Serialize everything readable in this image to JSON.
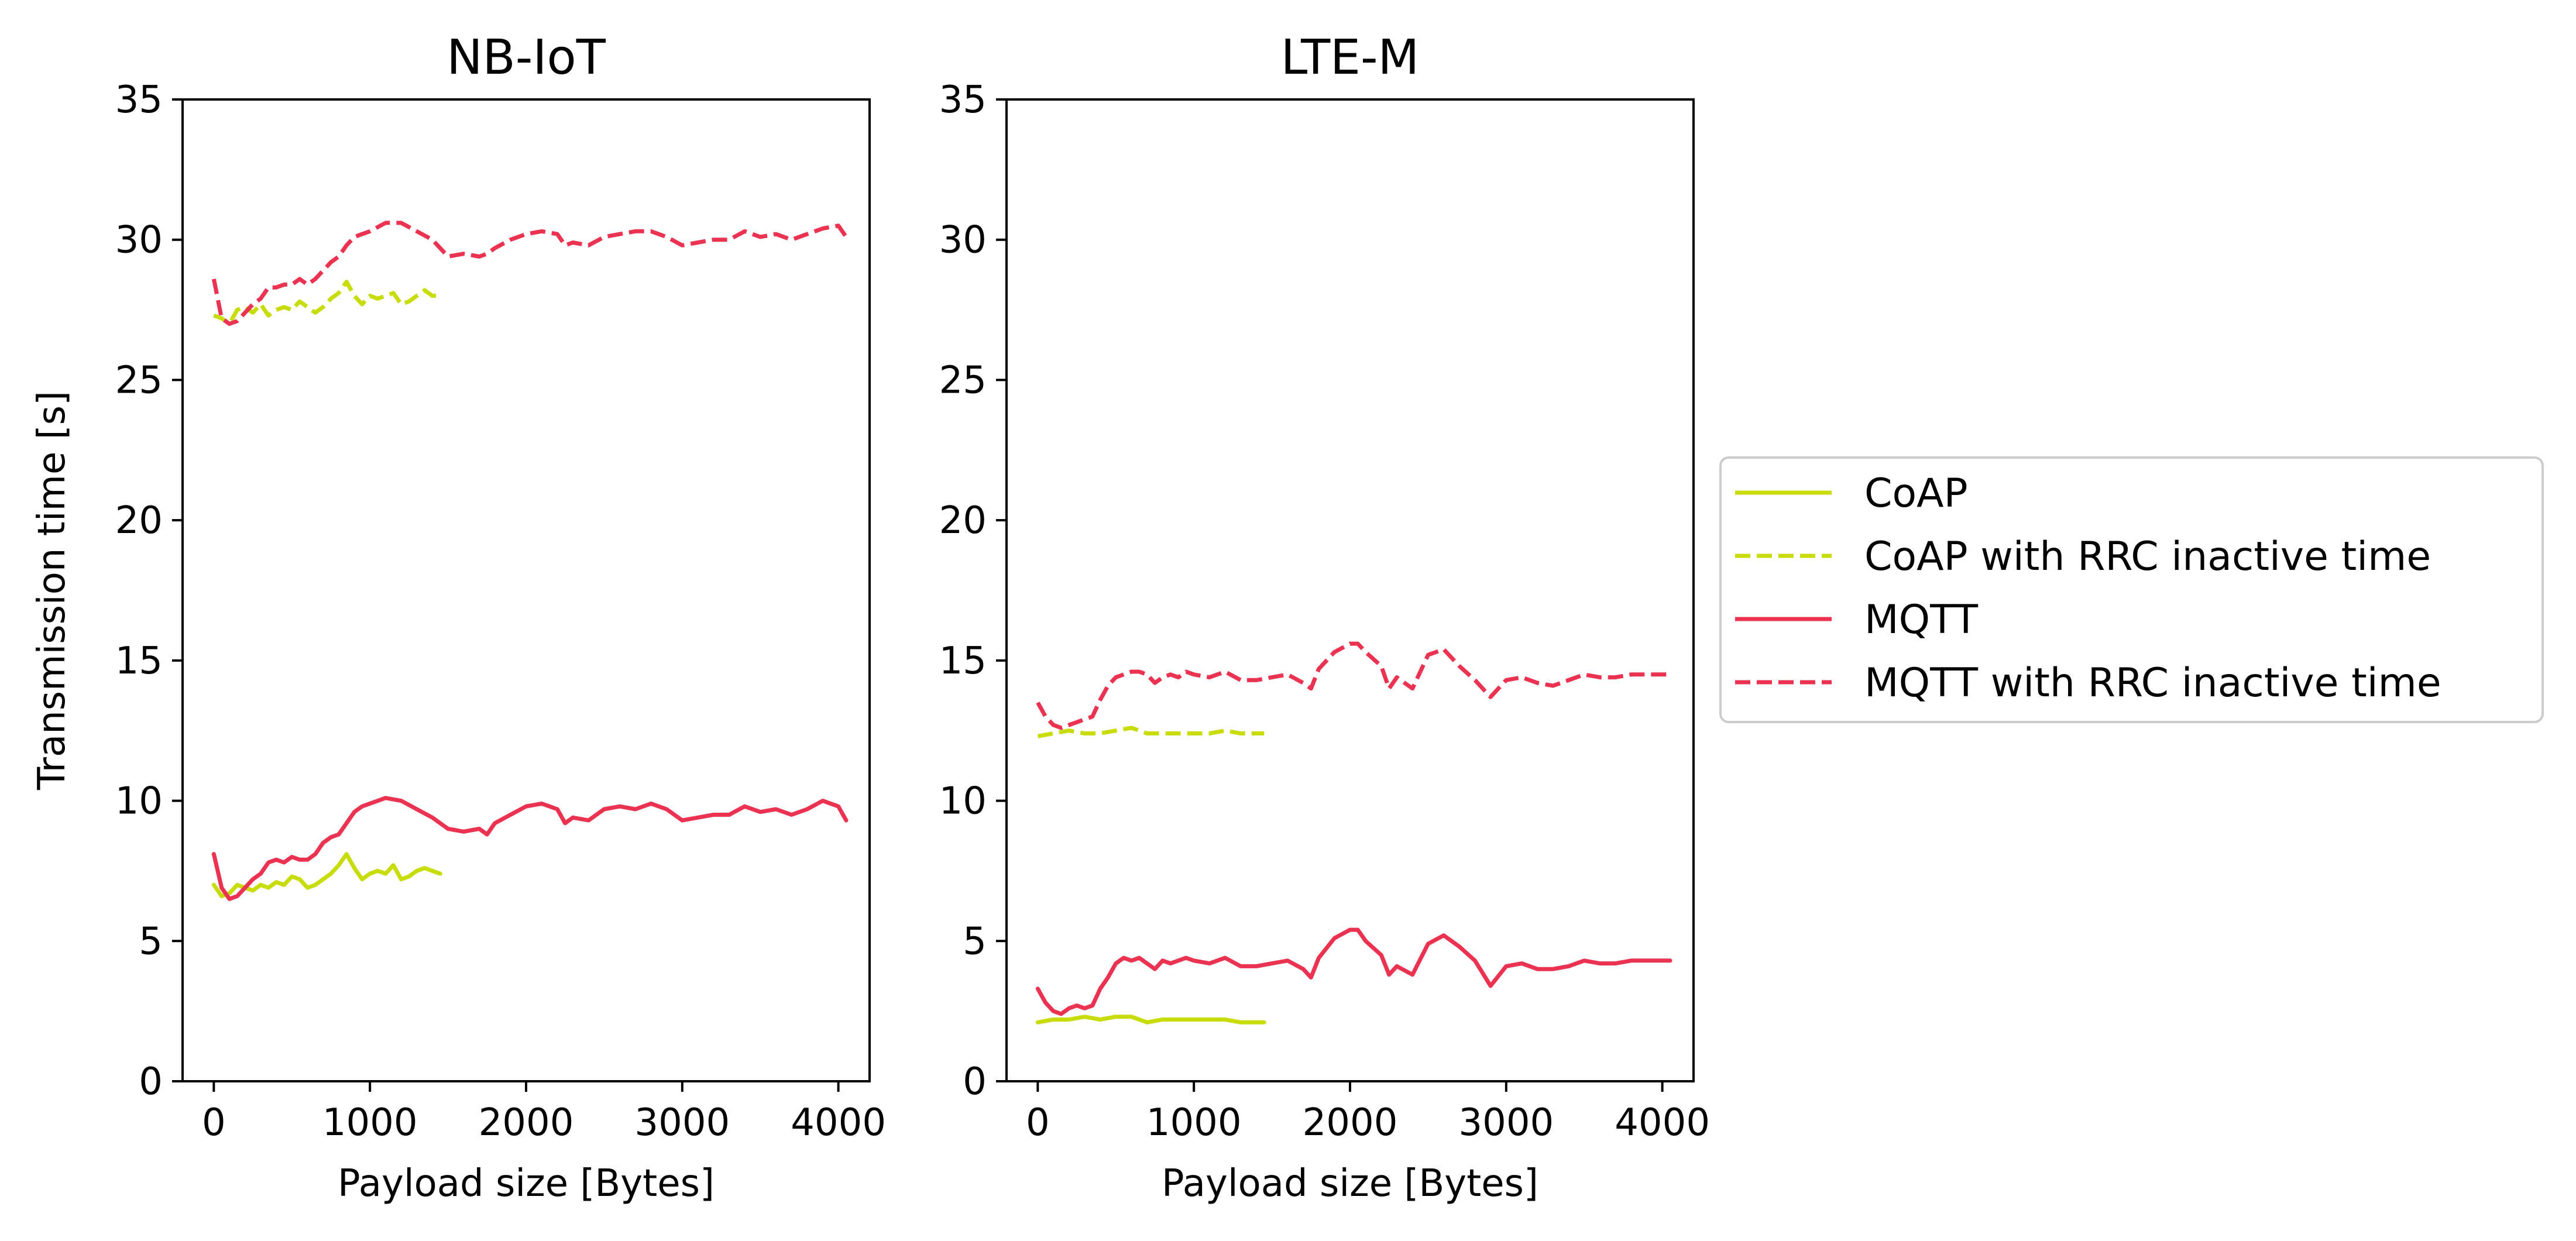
{
  "chart_data": {
    "type": "line",
    "ylabel": "Transmission time [s]",
    "legend": {
      "placement": "right",
      "entries": [
        {
          "label": "CoAP",
          "color": "#c8dc0a",
          "style": "solid"
        },
        {
          "label": "CoAP with RRC inactive time",
          "color": "#c8dc0a",
          "style": "dashed"
        },
        {
          "label": "MQTT",
          "color": "#eb3250",
          "style": "solid"
        },
        {
          "label": "MQTT with RRC inactive time",
          "color": "#eb3250",
          "style": "dashed"
        }
      ]
    },
    "colors": {
      "coap": "#c8dc0a",
      "mqtt": "#eb3250"
    },
    "panels": [
      {
        "title": "NB-IoT",
        "xlabel": "Payload size [Bytes]",
        "xlim": [
          -200,
          4200
        ],
        "ylim": [
          0,
          35
        ],
        "xticks": [
          "0",
          "1000",
          "2000",
          "3000",
          "4000"
        ],
        "xtick_values": [
          0,
          1000,
          2000,
          3000,
          4000
        ],
        "yticks": [
          "0",
          "5",
          "10",
          "15",
          "20",
          "25",
          "30",
          "35"
        ],
        "ytick_values": [
          0,
          5,
          10,
          15,
          20,
          25,
          30,
          35
        ],
        "series": [
          {
            "name": "CoAP",
            "color": "#c8dc0a",
            "style": "solid",
            "x": [
              0,
              50,
              100,
              150,
              200,
              250,
              300,
              350,
              400,
              450,
              500,
              550,
              600,
              650,
              700,
              750,
              800,
              850,
              900,
              950,
              1000,
              1050,
              1100,
              1150,
              1200,
              1250,
              1300,
              1350,
              1400,
              1450
            ],
            "y": [
              7.0,
              6.6,
              6.7,
              7.0,
              6.9,
              6.8,
              7.0,
              6.9,
              7.1,
              7.0,
              7.3,
              7.2,
              6.9,
              7.0,
              7.2,
              7.4,
              7.7,
              8.1,
              7.6,
              7.2,
              7.4,
              7.5,
              7.4,
              7.7,
              7.2,
              7.3,
              7.5,
              7.6,
              7.5,
              7.4
            ]
          },
          {
            "name": "CoAP with RRC inactive time",
            "color": "#c8dc0a",
            "style": "dashed",
            "x": [
              0,
              50,
              100,
              150,
              200,
              250,
              300,
              350,
              400,
              450,
              500,
              550,
              600,
              650,
              700,
              750,
              800,
              850,
              900,
              950,
              1000,
              1050,
              1100,
              1150,
              1200,
              1250,
              1300,
              1350,
              1400,
              1450
            ],
            "y": [
              27.3,
              27.2,
              27.0,
              27.5,
              27.6,
              27.4,
              27.7,
              27.3,
              27.5,
              27.6,
              27.5,
              27.8,
              27.6,
              27.4,
              27.6,
              27.9,
              28.1,
              28.5,
              28.0,
              27.7,
              28.0,
              27.9,
              28.0,
              28.1,
              27.7,
              27.8,
              28.0,
              28.2,
              28.0,
              28.0
            ]
          },
          {
            "name": "MQTT",
            "color": "#eb3250",
            "style": "solid",
            "x": [
              0,
              50,
              100,
              150,
              200,
              250,
              300,
              350,
              400,
              450,
              500,
              550,
              600,
              650,
              700,
              750,
              800,
              850,
              900,
              950,
              1000,
              1100,
              1200,
              1300,
              1400,
              1500,
              1600,
              1700,
              1750,
              1800,
              1900,
              2000,
              2100,
              2200,
              2250,
              2300,
              2400,
              2500,
              2600,
              2700,
              2800,
              2900,
              3000,
              3100,
              3200,
              3300,
              3400,
              3500,
              3600,
              3700,
              3800,
              3900,
              4000,
              4050
            ],
            "y": [
              8.1,
              6.9,
              6.5,
              6.6,
              6.9,
              7.2,
              7.4,
              7.8,
              7.9,
              7.8,
              8.0,
              7.9,
              7.9,
              8.1,
              8.5,
              8.7,
              8.8,
              9.2,
              9.6,
              9.8,
              9.9,
              10.1,
              10.0,
              9.7,
              9.4,
              9.0,
              8.9,
              9.0,
              8.8,
              9.2,
              9.5,
              9.8,
              9.9,
              9.7,
              9.2,
              9.4,
              9.3,
              9.7,
              9.8,
              9.7,
              9.9,
              9.7,
              9.3,
              9.4,
              9.5,
              9.5,
              9.8,
              9.6,
              9.7,
              9.5,
              9.7,
              10.0,
              9.8,
              9.3
            ]
          },
          {
            "name": "MQTT with RRC inactive time",
            "color": "#eb3250",
            "style": "dashed",
            "x": [
              0,
              50,
              100,
              150,
              200,
              250,
              300,
              350,
              400,
              450,
              500,
              550,
              600,
              650,
              700,
              750,
              800,
              850,
              900,
              950,
              1000,
              1100,
              1200,
              1300,
              1400,
              1500,
              1600,
              1700,
              1750,
              1800,
              1900,
              2000,
              2100,
              2200,
              2250,
              2300,
              2400,
              2500,
              2600,
              2700,
              2800,
              2900,
              3000,
              3100,
              3200,
              3300,
              3400,
              3500,
              3600,
              3700,
              3800,
              3900,
              4000,
              4050
            ],
            "y": [
              28.6,
              27.2,
              27.0,
              27.1,
              27.4,
              27.7,
              27.9,
              28.3,
              28.3,
              28.4,
              28.4,
              28.6,
              28.4,
              28.6,
              28.9,
              29.2,
              29.4,
              29.8,
              30.1,
              30.2,
              30.3,
              30.6,
              30.6,
              30.3,
              30.0,
              29.4,
              29.5,
              29.4,
              29.5,
              29.7,
              30.0,
              30.2,
              30.3,
              30.2,
              29.8,
              29.9,
              29.8,
              30.1,
              30.2,
              30.3,
              30.3,
              30.1,
              29.8,
              29.9,
              30.0,
              30.0,
              30.3,
              30.1,
              30.2,
              30.0,
              30.2,
              30.4,
              30.5,
              30.1
            ]
          }
        ]
      },
      {
        "title": "LTE-M",
        "xlabel": "Payload size [Bytes]",
        "xlim": [
          -200,
          4200
        ],
        "ylim": [
          0,
          35
        ],
        "xticks": [
          "0",
          "1000",
          "2000",
          "3000",
          "4000"
        ],
        "xtick_values": [
          0,
          1000,
          2000,
          3000,
          4000
        ],
        "yticks": [
          "0",
          "5",
          "10",
          "15",
          "20",
          "25",
          "30",
          "35"
        ],
        "ytick_values": [
          0,
          5,
          10,
          15,
          20,
          25,
          30,
          35
        ],
        "series": [
          {
            "name": "CoAP",
            "color": "#c8dc0a",
            "style": "solid",
            "x": [
              0,
              100,
              200,
              300,
              400,
              500,
              600,
              700,
              800,
              900,
              1000,
              1100,
              1200,
              1300,
              1400,
              1450
            ],
            "y": [
              2.1,
              2.2,
              2.2,
              2.3,
              2.2,
              2.3,
              2.3,
              2.1,
              2.2,
              2.2,
              2.2,
              2.2,
              2.2,
              2.1,
              2.1,
              2.1
            ]
          },
          {
            "name": "CoAP with RRC inactive time",
            "color": "#c8dc0a",
            "style": "dashed",
            "x": [
              0,
              100,
              200,
              300,
              400,
              500,
              600,
              700,
              800,
              900,
              1000,
              1100,
              1200,
              1300,
              1400,
              1450
            ],
            "y": [
              12.3,
              12.4,
              12.5,
              12.4,
              12.4,
              12.5,
              12.6,
              12.4,
              12.4,
              12.4,
              12.4,
              12.4,
              12.5,
              12.4,
              12.4,
              12.4
            ]
          },
          {
            "name": "MQTT",
            "color": "#eb3250",
            "style": "solid",
            "x": [
              0,
              50,
              100,
              150,
              200,
              250,
              300,
              350,
              400,
              450,
              500,
              550,
              600,
              650,
              700,
              750,
              800,
              850,
              900,
              950,
              1000,
              1100,
              1200,
              1300,
              1400,
              1500,
              1600,
              1700,
              1750,
              1800,
              1900,
              2000,
              2050,
              2100,
              2200,
              2250,
              2300,
              2400,
              2500,
              2600,
              2700,
              2800,
              2900,
              3000,
              3100,
              3200,
              3300,
              3400,
              3500,
              3600,
              3700,
              3800,
              3900,
              4000,
              4050
            ],
            "y": [
              3.3,
              2.8,
              2.5,
              2.4,
              2.6,
              2.7,
              2.6,
              2.7,
              3.3,
              3.7,
              4.2,
              4.4,
              4.3,
              4.4,
              4.2,
              4.0,
              4.3,
              4.2,
              4.3,
              4.4,
              4.3,
              4.2,
              4.4,
              4.1,
              4.1,
              4.2,
              4.3,
              4.0,
              3.7,
              4.4,
              5.1,
              5.4,
              5.4,
              5.0,
              4.5,
              3.8,
              4.1,
              3.8,
              4.9,
              5.2,
              4.8,
              4.3,
              3.4,
              4.1,
              4.2,
              4.0,
              4.0,
              4.1,
              4.3,
              4.2,
              4.2,
              4.3,
              4.3,
              4.3,
              4.3
            ]
          },
          {
            "name": "MQTT with RRC inactive time",
            "color": "#eb3250",
            "style": "dashed",
            "x": [
              0,
              50,
              100,
              150,
              200,
              250,
              300,
              350,
              400,
              450,
              500,
              550,
              600,
              650,
              700,
              750,
              800,
              850,
              900,
              950,
              1000,
              1100,
              1200,
              1300,
              1400,
              1500,
              1600,
              1700,
              1750,
              1800,
              1900,
              2000,
              2050,
              2100,
              2200,
              2250,
              2300,
              2400,
              2500,
              2600,
              2700,
              2800,
              2900,
              3000,
              3100,
              3200,
              3300,
              3400,
              3500,
              3600,
              3700,
              3800,
              3900,
              4000,
              4050
            ],
            "y": [
              13.5,
              13.0,
              12.7,
              12.6,
              12.7,
              12.8,
              12.9,
              13.0,
              13.6,
              14.1,
              14.4,
              14.5,
              14.6,
              14.6,
              14.5,
              14.2,
              14.4,
              14.5,
              14.4,
              14.6,
              14.5,
              14.4,
              14.6,
              14.3,
              14.3,
              14.4,
              14.5,
              14.2,
              14.0,
              14.7,
              15.3,
              15.6,
              15.6,
              15.3,
              14.8,
              14.0,
              14.4,
              14.0,
              15.2,
              15.4,
              14.8,
              14.3,
              13.7,
              14.3,
              14.4,
              14.2,
              14.1,
              14.3,
              14.5,
              14.4,
              14.4,
              14.5,
              14.5,
              14.5,
              14.5
            ]
          }
        ]
      }
    ]
  }
}
